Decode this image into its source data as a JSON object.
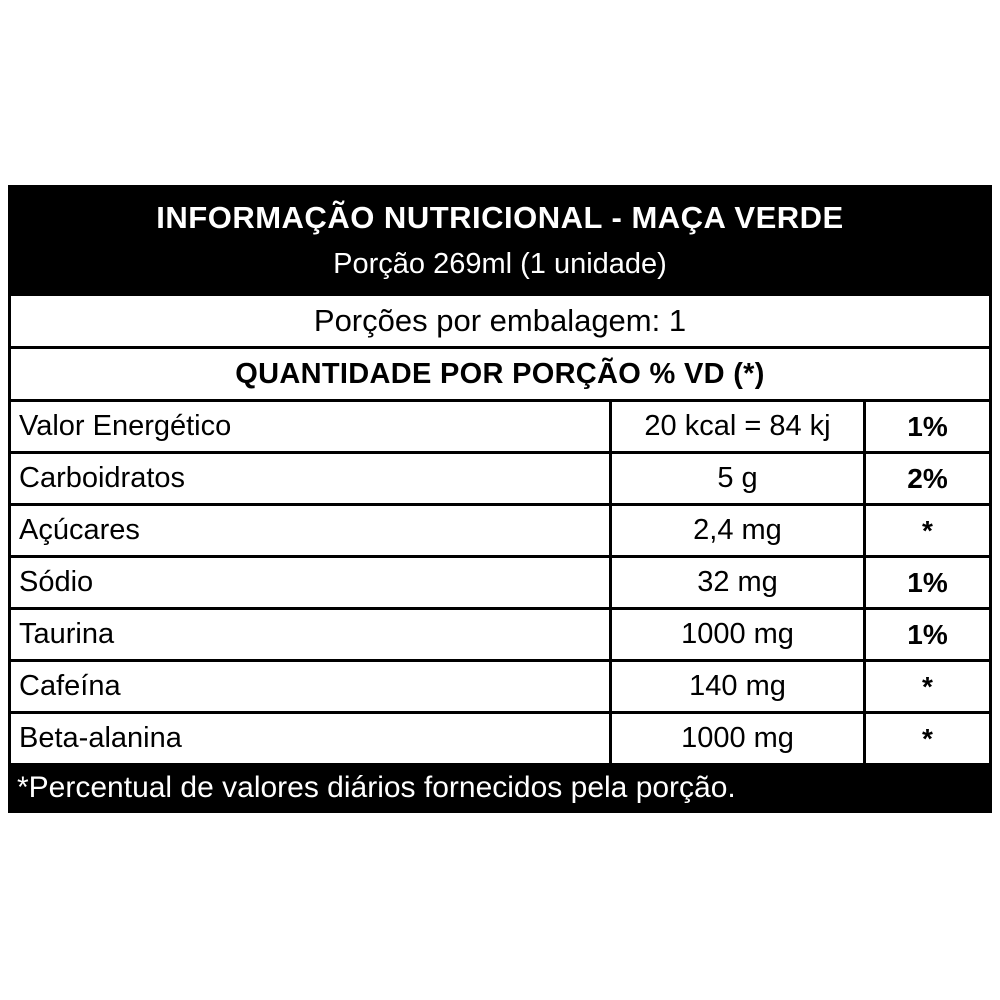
{
  "label": {
    "title": "INFORMAÇÃO NUTRICIONAL - MAÇA VERDE",
    "serving": "Porção 269ml (1 unidade)",
    "servings_per_package": "Porções por embalagem: 1",
    "column_header": "QUANTIDADE POR PORÇÃO % VD (*)",
    "rows": [
      {
        "label": "Valor Energético",
        "amount": "20 kcal = 84 kj",
        "dv": "1%"
      },
      {
        "label": "Carboidratos",
        "amount": "5 g",
        "dv": "2%"
      },
      {
        "label": "Açúcares",
        "amount": "2,4 mg",
        "dv": "*"
      },
      {
        "label": "Sódio",
        "amount": "32 mg",
        "dv": "1%"
      },
      {
        "label": "Taurina",
        "amount": "1000 mg",
        "dv": "1%"
      },
      {
        "label": "Cafeína",
        "amount": "140 mg",
        "dv": "*"
      },
      {
        "label": "Beta-alanina",
        "amount": "1000 mg",
        "dv": "*"
      }
    ],
    "footnote": "*Percentual de valores diários fornecidos pela porção.",
    "colors": {
      "band_bg": "#000000",
      "band_text": "#ffffff",
      "body_bg": "#ffffff",
      "body_text": "#000000",
      "border": "#000000"
    }
  }
}
